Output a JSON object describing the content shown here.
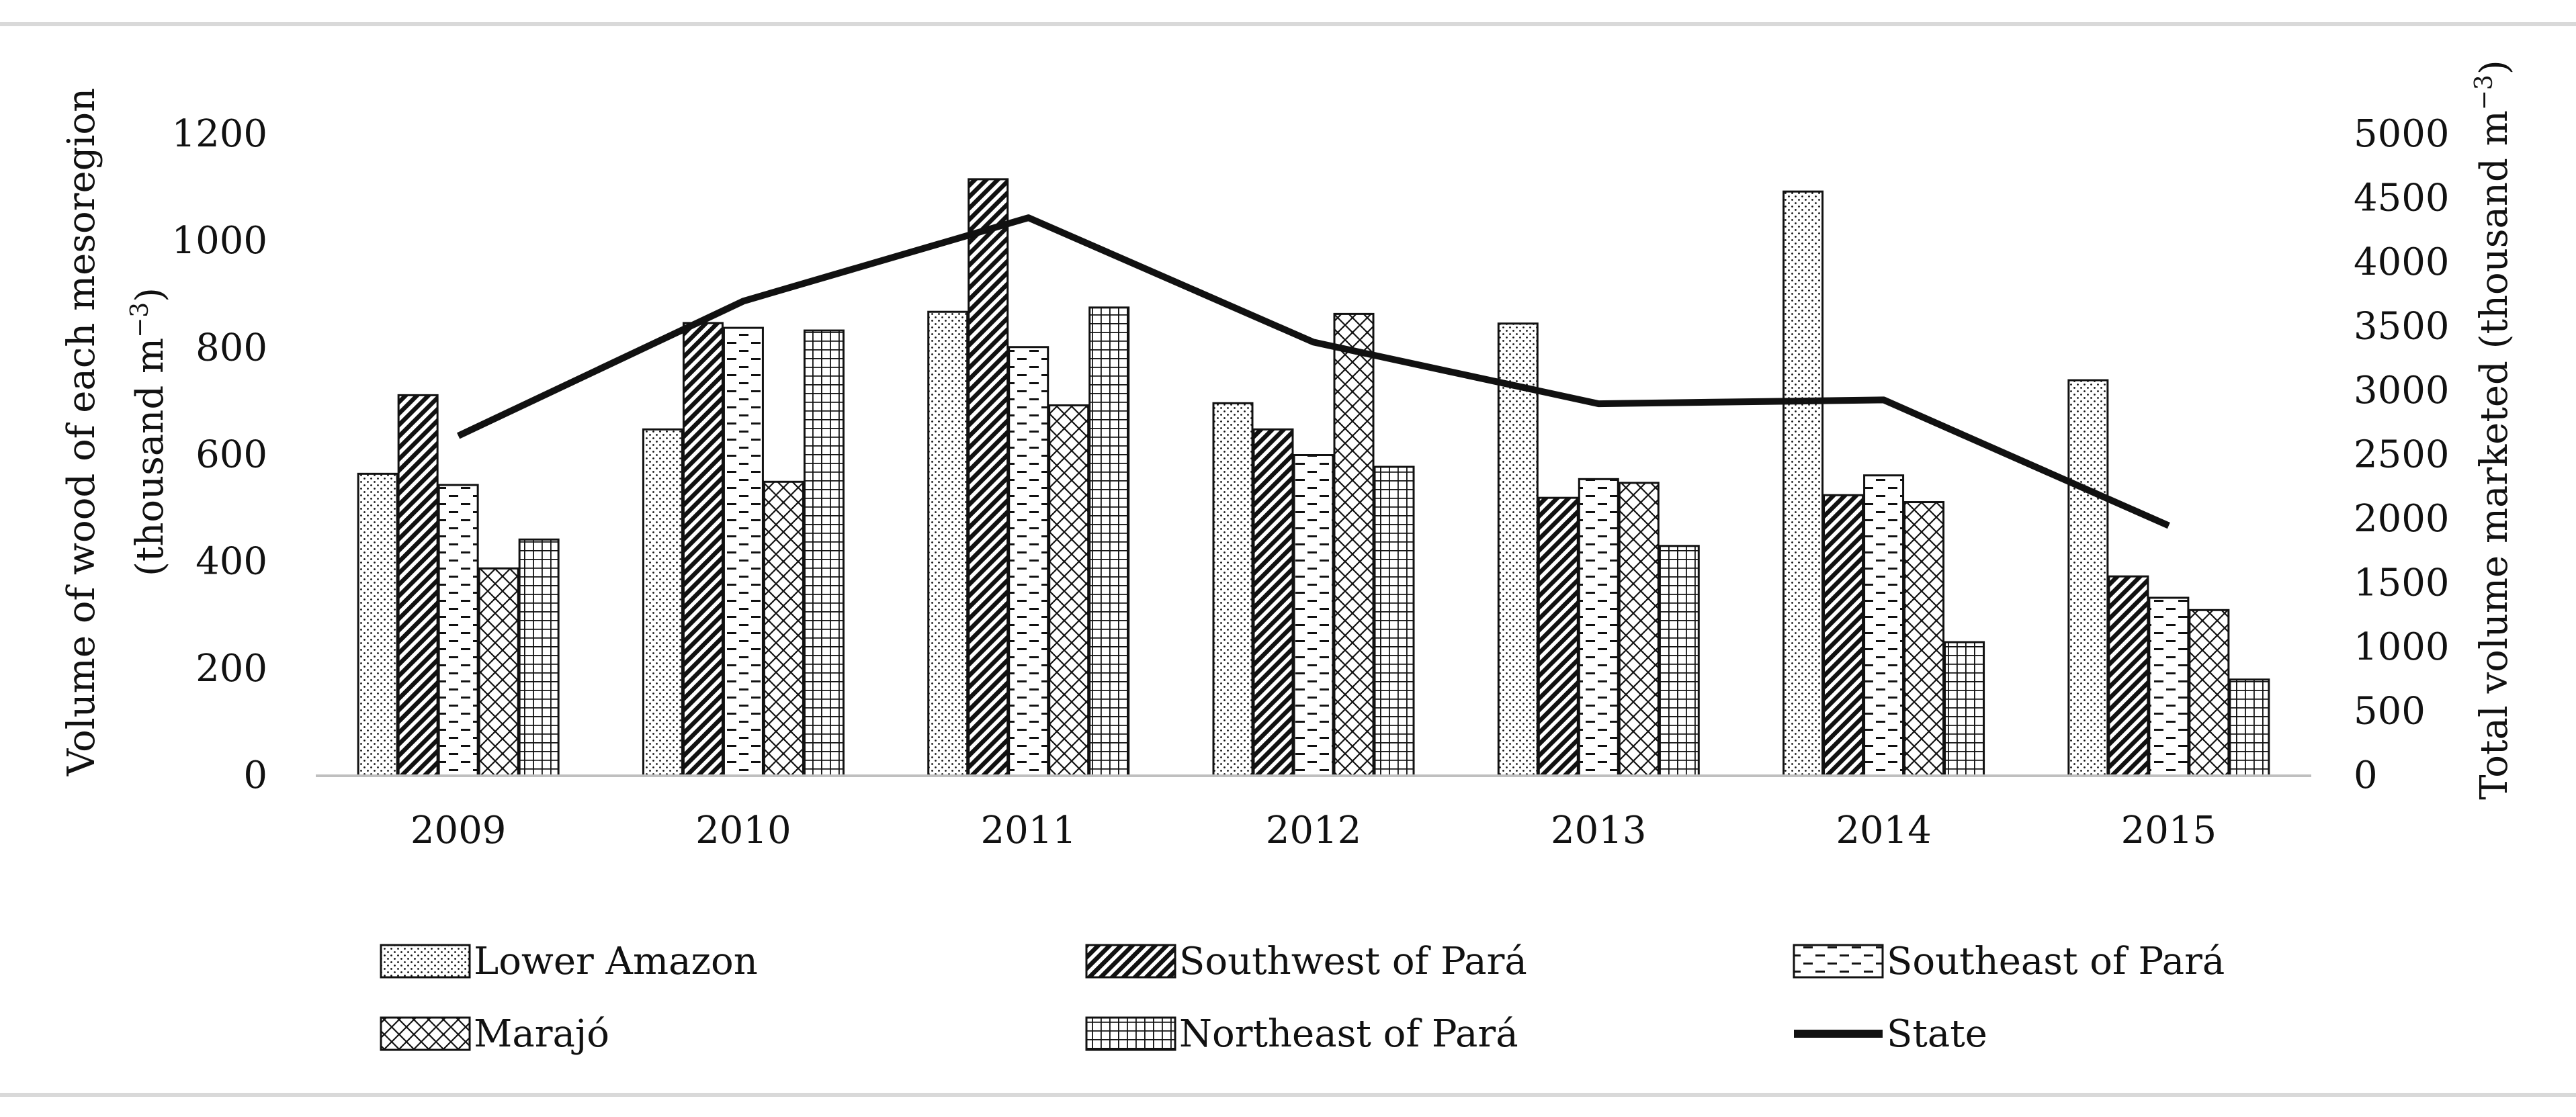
{
  "chart_data": {
    "type": "bar",
    "categories": [
      "2009",
      "2010",
      "2011",
      "2012",
      "2013",
      "2014",
      "2015"
    ],
    "series": [
      {
        "name": "Lower Amazon",
        "pattern": "dots",
        "axis": "left",
        "values": [
          565,
          648,
          868,
          697,
          846,
          1093,
          740
        ]
      },
      {
        "name": "Southwest of Pará",
        "pattern": "diag",
        "axis": "left",
        "values": [
          712,
          847,
          1116,
          648,
          520,
          525,
          373
        ]
      },
      {
        "name": "Southeast of Pará",
        "pattern": "dash",
        "axis": "left",
        "values": [
          544,
          838,
          802,
          600,
          555,
          562,
          333
        ]
      },
      {
        "name": "Marajó",
        "pattern": "cross",
        "axis": "left",
        "values": [
          388,
          550,
          693,
          864,
          548,
          512,
          310
        ]
      },
      {
        "name": "Northeast of Pará",
        "pattern": "grid",
        "axis": "left",
        "values": [
          442,
          833,
          876,
          578,
          430,
          250,
          180
        ]
      }
    ],
    "line_series": {
      "name": "State",
      "axis": "right",
      "values": [
        2650,
        3700,
        4350,
        3380,
        2900,
        2930,
        1950
      ]
    },
    "ylabel_left_line1": "Volume of wood of each mesoregion",
    "ylabel_left_line2": "(thousand m",
    "ylabel_right": "Total volume marketed (thousand m",
    "unit_superscript": "−3",
    "unit_close": ")",
    "ylim_left": [
      0,
      1200
    ],
    "ylim_right": [
      0,
      5000
    ],
    "yticks_left": [
      "0",
      "200",
      "400",
      "600",
      "800",
      "1000",
      "1200"
    ],
    "yticks_right": [
      "0",
      "500",
      "1000",
      "1500",
      "2000",
      "2500",
      "3000",
      "3500",
      "4000",
      "4500",
      "5000"
    ],
    "legend_position": "bottom",
    "grid": false
  },
  "colors": {
    "ink": "#111111",
    "fill": "#ffffff",
    "rule": "#d9d9d9",
    "axis": "#bfbfbf"
  }
}
